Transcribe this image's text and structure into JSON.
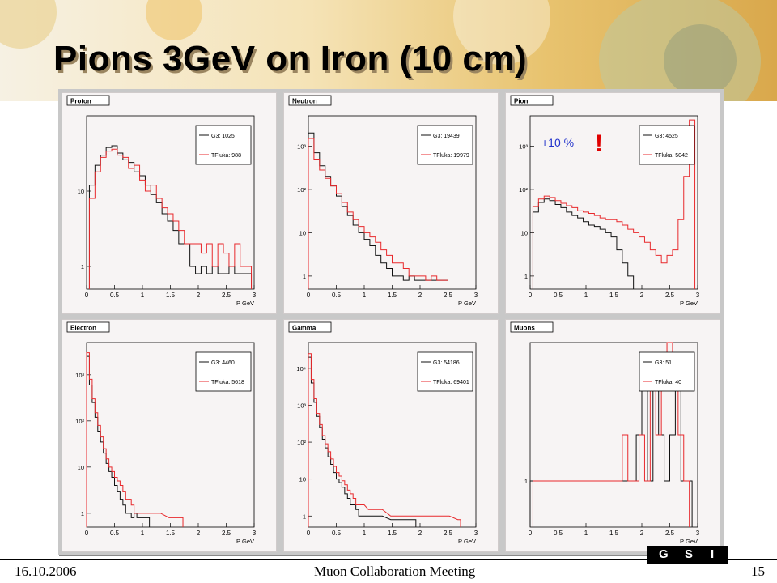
{
  "slide": {
    "title": "Pions 3GeV on Iron (10 cm)",
    "footer_date": "16.10.2006",
    "footer_center": "Muon Collaboration Meeting",
    "page_number": "15"
  },
  "colors": {
    "g3": "#111111",
    "tfluka": "#e8292c",
    "annotation": "#2233cc",
    "exclaim": "#e00000"
  },
  "chart_data": [
    {
      "type": "line",
      "title": "Proton",
      "xlabel": "P GeV",
      "log_y": true,
      "xlim": [
        0,
        3
      ],
      "ylim": [
        0.5,
        100
      ],
      "x_ticks": [
        "0",
        "0.5",
        "1",
        "1.5",
        "2",
        "2.5",
        "3"
      ],
      "y_ticks": [
        {
          "v": 1,
          "label": "1"
        },
        {
          "v": 10,
          "label": "10"
        }
      ],
      "legend": [
        {
          "name": "G3",
          "value": "1025"
        },
        {
          "name": "TFluka",
          "value": "988"
        }
      ],
      "series": [
        {
          "name": "G3",
          "x": [
            0.1,
            0.2,
            0.3,
            0.4,
            0.5,
            0.6,
            0.7,
            0.8,
            0.9,
            1.0,
            1.1,
            1.2,
            1.3,
            1.4,
            1.5,
            1.6,
            1.7,
            1.8,
            1.9,
            2.0,
            2.1,
            2.2,
            2.3,
            2.4,
            2.5,
            2.6,
            2.7,
            2.8,
            2.9
          ],
          "y": [
            12,
            22,
            30,
            38,
            40,
            32,
            26,
            24,
            18,
            16,
            12,
            9,
            7,
            5,
            4,
            3,
            2,
            2,
            1,
            0.8,
            1,
            0.8,
            1,
            0.8,
            0.8,
            1,
            0.8,
            0.8,
            0.8
          ]
        },
        {
          "name": "TFluka",
          "x": [
            0.1,
            0.2,
            0.3,
            0.4,
            0.5,
            0.6,
            0.7,
            0.8,
            0.9,
            1.0,
            1.1,
            1.2,
            1.3,
            1.4,
            1.5,
            1.6,
            1.7,
            1.8,
            1.9,
            2.0,
            2.1,
            2.2,
            2.3,
            2.4,
            2.5,
            2.6,
            2.7,
            2.8,
            2.9
          ],
          "y": [
            8,
            18,
            28,
            34,
            36,
            30,
            28,
            20,
            22,
            14,
            10,
            12,
            8,
            6,
            5,
            4,
            3,
            2,
            2,
            2,
            1.5,
            2,
            1,
            2,
            1.5,
            1,
            2,
            1,
            1
          ]
        }
      ]
    },
    {
      "type": "line",
      "title": "Neutron",
      "xlabel": "P GeV",
      "log_y": true,
      "xlim": [
        0,
        3
      ],
      "ylim": [
        0.5,
        5000
      ],
      "x_ticks": [
        "0",
        "0.5",
        "1",
        "1.5",
        "2",
        "2.5",
        "3"
      ],
      "y_ticks": [
        {
          "v": 1,
          "label": "1"
        },
        {
          "v": 10,
          "label": "10"
        },
        {
          "v": 100,
          "label": "10²"
        },
        {
          "v": 1000,
          "label": "10³"
        }
      ],
      "legend": [
        {
          "name": "G3",
          "value": "19439"
        },
        {
          "name": "TFluka",
          "value": "19979"
        }
      ],
      "series": [
        {
          "name": "G3",
          "x": [
            0.05,
            0.15,
            0.25,
            0.35,
            0.45,
            0.55,
            0.65,
            0.75,
            0.85,
            0.95,
            1.05,
            1.15,
            1.25,
            1.35,
            1.45,
            1.55,
            1.65,
            1.75,
            1.85,
            1.95,
            2.05,
            2.15,
            2.25,
            2.35,
            2.45
          ],
          "y": [
            2000,
            700,
            350,
            200,
            120,
            70,
            40,
            25,
            15,
            10,
            7,
            5,
            3,
            2,
            1.5,
            1,
            1,
            0.8,
            1,
            0.8,
            0.8,
            0.8,
            0.8,
            0.8,
            0.8
          ]
        },
        {
          "name": "TFluka",
          "x": [
            0.05,
            0.15,
            0.25,
            0.35,
            0.45,
            0.55,
            0.65,
            0.75,
            0.85,
            0.95,
            1.05,
            1.15,
            1.25,
            1.35,
            1.45,
            1.55,
            1.65,
            1.75,
            1.85,
            1.95,
            2.05,
            2.15,
            2.25,
            2.35,
            2.45
          ],
          "y": [
            1500,
            500,
            280,
            180,
            120,
            80,
            50,
            30,
            20,
            14,
            10,
            8,
            6,
            4,
            3,
            2,
            2,
            1.5,
            1,
            1,
            1,
            0.8,
            1,
            0.8,
            0.8
          ]
        }
      ]
    },
    {
      "type": "line",
      "title": "Pion",
      "xlabel": "P GeV",
      "log_y": true,
      "xlim": [
        0,
        3
      ],
      "ylim": [
        0.5,
        5000
      ],
      "x_ticks": [
        "0",
        "0.5",
        "1",
        "1.5",
        "2",
        "2.5",
        "3"
      ],
      "y_ticks": [
        {
          "v": 1,
          "label": "1"
        },
        {
          "v": 10,
          "label": "10"
        },
        {
          "v": 100,
          "label": "10²"
        },
        {
          "v": 1000,
          "label": "10³"
        }
      ],
      "legend": [
        {
          "name": "G3",
          "value": "4525"
        },
        {
          "name": "TFluka",
          "value": "5042"
        }
      ],
      "annotation": "+10 %",
      "exclaim": "!",
      "series": [
        {
          "name": "G3",
          "x": [
            0.1,
            0.2,
            0.3,
            0.4,
            0.5,
            0.6,
            0.7,
            0.8,
            0.9,
            1.0,
            1.1,
            1.2,
            1.3,
            1.4,
            1.5,
            1.6,
            1.7,
            1.8
          ],
          "y": [
            30,
            50,
            60,
            55,
            45,
            38,
            30,
            25,
            22,
            18,
            15,
            14,
            12,
            10,
            8,
            4,
            2,
            1
          ]
        },
        {
          "name": "TFluka",
          "x": [
            0.1,
            0.2,
            0.3,
            0.4,
            0.5,
            0.6,
            0.7,
            0.8,
            0.9,
            1.0,
            1.1,
            1.2,
            1.3,
            1.4,
            1.5,
            1.6,
            1.7,
            1.8,
            1.9,
            2.0,
            2.1,
            2.2,
            2.3,
            2.4,
            2.5,
            2.6,
            2.7,
            2.8,
            2.9
          ],
          "y": [
            40,
            60,
            70,
            65,
            55,
            48,
            42,
            38,
            32,
            30,
            28,
            25,
            22,
            20,
            20,
            18,
            15,
            12,
            10,
            8,
            6,
            4,
            3,
            2,
            3,
            4,
            20,
            200,
            4000
          ]
        }
      ]
    },
    {
      "type": "line",
      "title": "Electron",
      "xlabel": "P GeV",
      "log_y": true,
      "xlim": [
        0,
        3
      ],
      "ylim": [
        0.5,
        5000
      ],
      "x_ticks": [
        "0",
        "0.5",
        "1",
        "1.5",
        "2",
        "2.5",
        "3"
      ],
      "y_ticks": [
        {
          "v": 1,
          "label": "1"
        },
        {
          "v": 10,
          "label": "10"
        },
        {
          "v": 100,
          "label": "10²"
        },
        {
          "v": 1000,
          "label": "10³"
        }
      ],
      "legend": [
        {
          "name": "G3",
          "value": "4460"
        },
        {
          "name": "TFluka",
          "value": "5618"
        }
      ],
      "series": [
        {
          "name": "G3",
          "x": [
            0.025,
            0.075,
            0.125,
            0.175,
            0.225,
            0.275,
            0.325,
            0.375,
            0.425,
            0.475,
            0.525,
            0.575,
            0.625,
            0.675,
            0.725,
            0.775,
            0.825,
            0.875,
            0.925,
            0.975,
            1.1
          ],
          "y": [
            2500,
            600,
            250,
            120,
            60,
            35,
            20,
            12,
            8,
            6,
            4,
            3,
            2,
            1.5,
            1,
            1,
            0.8,
            1,
            0.8,
            0.8,
            0.8
          ]
        },
        {
          "name": "TFluka",
          "x": [
            0.025,
            0.075,
            0.125,
            0.175,
            0.225,
            0.275,
            0.325,
            0.375,
            0.425,
            0.475,
            0.525,
            0.575,
            0.625,
            0.675,
            0.725,
            0.775,
            0.825,
            0.875,
            0.925,
            0.975,
            1.1,
            1.3,
            1.5,
            1.7
          ],
          "y": [
            3000,
            800,
            300,
            150,
            80,
            45,
            25,
            15,
            10,
            8,
            6,
            5,
            4,
            3,
            2,
            2,
            1.5,
            1,
            1,
            1,
            1,
            1,
            0.8,
            0.8
          ]
        }
      ]
    },
    {
      "type": "line",
      "title": "Gamma",
      "xlabel": "P GeV",
      "log_y": true,
      "xlim": [
        0,
        3
      ],
      "ylim": [
        0.5,
        50000
      ],
      "x_ticks": [
        "0",
        "0.5",
        "1",
        "1.5",
        "2",
        "2.5",
        "3"
      ],
      "y_ticks": [
        {
          "v": 1,
          "label": "1"
        },
        {
          "v": 10,
          "label": "10"
        },
        {
          "v": 100,
          "label": "10²"
        },
        {
          "v": 1000,
          "label": "10³"
        },
        {
          "v": 10000,
          "label": "10⁴"
        }
      ],
      "legend": [
        {
          "name": "G3",
          "value": "54186"
        },
        {
          "name": "TFluka",
          "value": "69401"
        }
      ],
      "series": [
        {
          "name": "G3",
          "x": [
            0.025,
            0.075,
            0.125,
            0.175,
            0.225,
            0.275,
            0.325,
            0.375,
            0.425,
            0.475,
            0.525,
            0.575,
            0.625,
            0.675,
            0.725,
            0.775,
            0.825,
            0.875,
            0.925,
            0.975,
            1.1,
            1.3,
            1.5,
            1.7,
            1.9
          ],
          "y": [
            20000,
            4000,
            1200,
            500,
            250,
            120,
            70,
            40,
            25,
            15,
            10,
            8,
            6,
            4,
            3,
            2,
            2,
            1.5,
            1,
            1,
            1,
            1,
            0.8,
            0.8,
            0.8
          ]
        },
        {
          "name": "TFluka",
          "x": [
            0.025,
            0.075,
            0.125,
            0.175,
            0.225,
            0.275,
            0.325,
            0.375,
            0.425,
            0.475,
            0.525,
            0.575,
            0.625,
            0.675,
            0.725,
            0.775,
            0.825,
            0.875,
            0.925,
            0.975,
            1.1,
            1.3,
            1.5,
            1.7,
            1.9,
            2.1,
            2.3,
            2.5,
            2.7
          ],
          "y": [
            25000,
            5000,
            1500,
            600,
            300,
            150,
            90,
            55,
            35,
            22,
            15,
            12,
            9,
            7,
            5,
            4,
            3,
            2,
            2,
            2,
            1.5,
            1.5,
            1,
            1,
            1,
            1,
            1,
            1,
            0.8
          ]
        }
      ]
    },
    {
      "type": "line",
      "title": "Muons",
      "xlabel": "P GeV",
      "log_y": false,
      "xlim": [
        0,
        3
      ],
      "ylim": [
        0,
        4
      ],
      "x_ticks": [
        "0",
        "0.5",
        "1",
        "1.5",
        "2",
        "2.5",
        "3"
      ],
      "y_ticks": [
        {
          "v": 1,
          "label": "1"
        }
      ],
      "legend": [
        {
          "name": "G3",
          "value": "51"
        },
        {
          "name": "TFluka",
          "value": "40"
        }
      ],
      "series": [
        {
          "name": "G3",
          "x": [
            0.05,
            0.15,
            1.85,
            1.95,
            2.05,
            2.15,
            2.25,
            2.35,
            2.45,
            2.55,
            2.65,
            2.75,
            2.85
          ],
          "y": [
            1,
            1,
            1,
            2,
            3,
            1,
            3,
            2,
            1,
            2,
            3,
            1,
            1
          ]
        },
        {
          "name": "TFluka",
          "x": [
            0.1,
            0.2,
            0.3,
            1.6,
            1.7,
            1.8,
            1.9,
            2.0,
            2.1,
            2.2,
            2.3,
            2.4,
            2.5,
            2.6,
            2.7,
            2.8
          ],
          "y": [
            1,
            1,
            1,
            1,
            2,
            1,
            1,
            2,
            1,
            3,
            2,
            3,
            4,
            3,
            2,
            1
          ]
        }
      ]
    }
  ]
}
